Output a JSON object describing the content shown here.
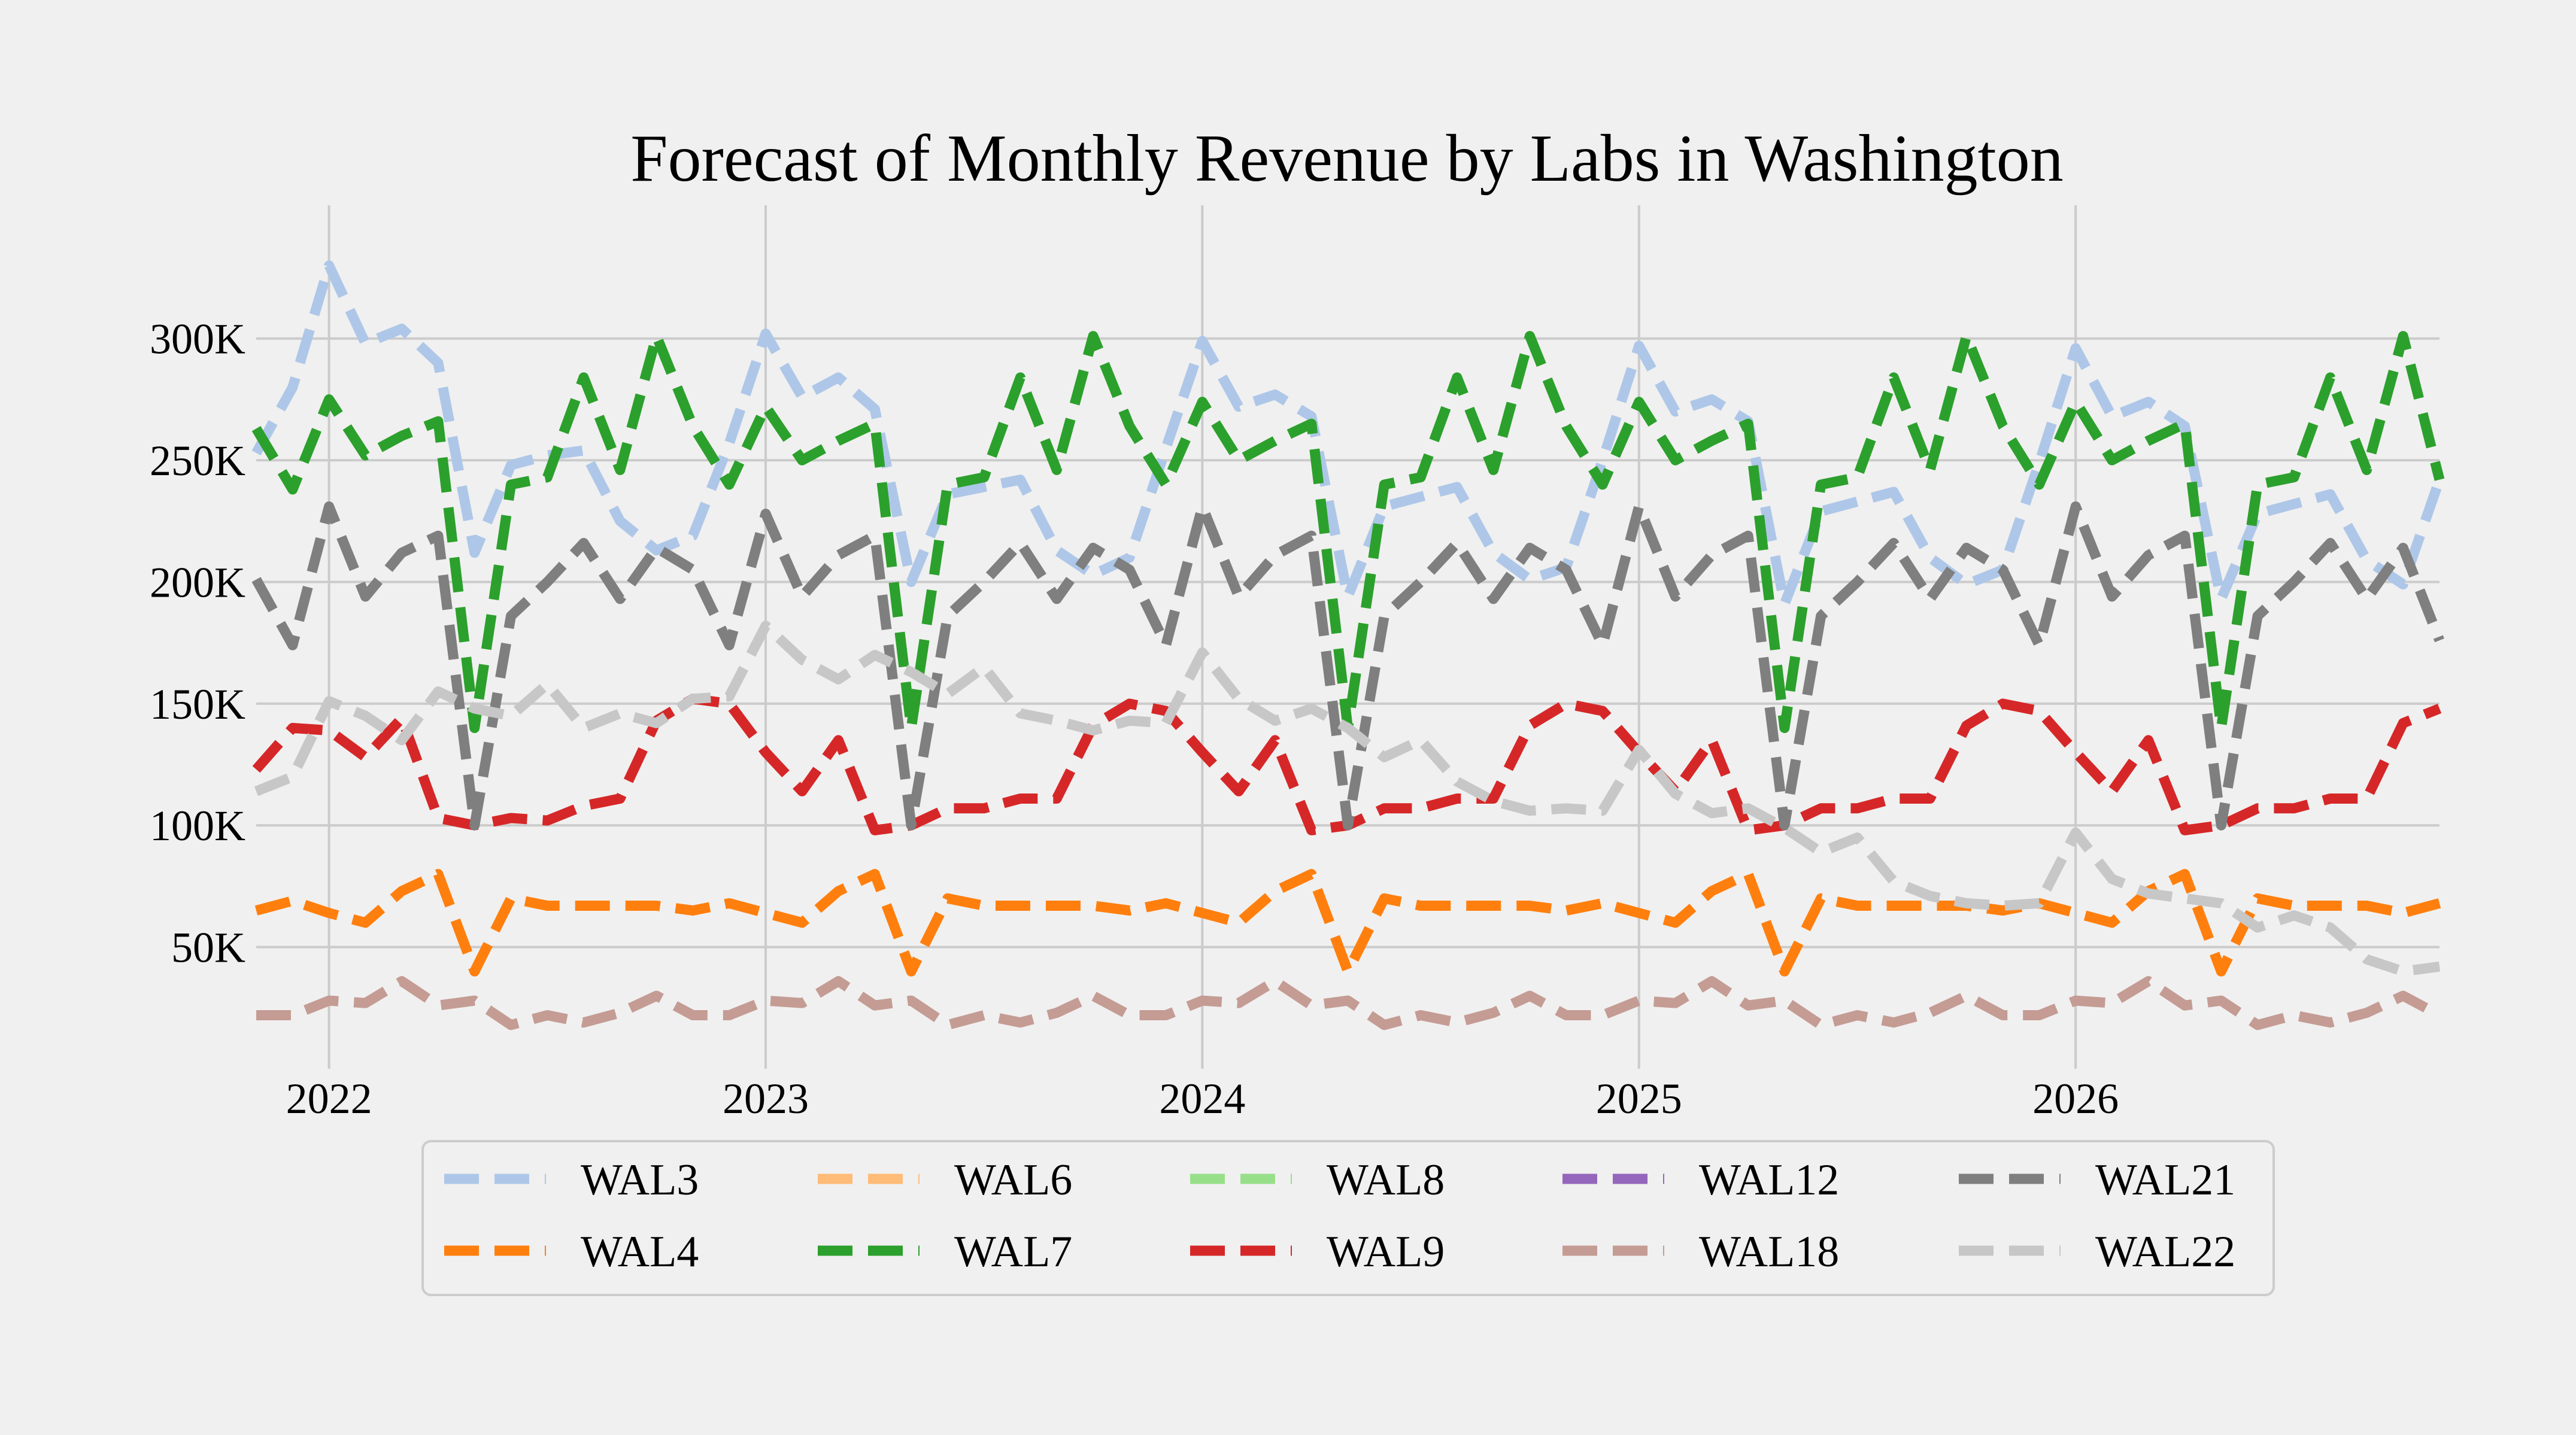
{
  "chart_data": {
    "type": "line",
    "title": "Forecast of Monthly Revenue by Labs in Washington",
    "xlabel": "",
    "ylabel": "",
    "x_start": "2021-11",
    "x_end": "2026-11",
    "x_ticks": [
      "2022",
      "2023",
      "2024",
      "2025",
      "2026"
    ],
    "ylim": [
      0,
      340000
    ],
    "y_ticks": [
      {
        "value": 50000,
        "label": "50K"
      },
      {
        "value": 100000,
        "label": "100K"
      },
      {
        "value": 150000,
        "label": "150K"
      },
      {
        "value": 200000,
        "label": "200K"
      },
      {
        "value": 250000,
        "label": "250K"
      },
      {
        "value": 300000,
        "label": "300K"
      }
    ],
    "grid": true,
    "legend_position": "bottom-center",
    "legend_columns": 5,
    "series": [
      {
        "name": "WAL3",
        "color": "#aec7e8",
        "values": [
          253000,
          280000,
          330000,
          298000,
          304000,
          290000,
          212000,
          248000,
          252000,
          254000,
          225000,
          213000,
          219000,
          257000,
          302000,
          276000,
          284000,
          271000,
          200000,
          236000,
          239000,
          242000,
          213000,
          203000,
          210000,
          255000,
          299000,
          272000,
          277000,
          268000,
          194000,
          231000,
          235000,
          239000,
          212000,
          201000,
          206000,
          250000,
          297000,
          270000,
          275000,
          266000,
          191000,
          229000,
          233000,
          237000,
          210000,
          199000,
          205000,
          249000,
          296000,
          268000,
          274000,
          264000,
          193000,
          228000,
          232000,
          236000,
          209000,
          199000,
          242000
        ]
      },
      {
        "name": "WAL4",
        "color": "#ff7f0e",
        "values": [
          65000,
          69000,
          64000,
          60000,
          73000,
          80000,
          40000,
          70000,
          67000,
          67000,
          67000,
          67000,
          65000,
          68000,
          64000,
          60000,
          73000,
          80000,
          40000,
          70000,
          67000,
          67000,
          67000,
          67000,
          65000,
          68000,
          64000,
          60000,
          73000,
          80000,
          40000,
          70000,
          67000,
          67000,
          67000,
          67000,
          65000,
          68000,
          64000,
          60000,
          73000,
          80000,
          40000,
          70000,
          67000,
          67000,
          67000,
          67000,
          65000,
          68000,
          64000,
          60000,
          73000,
          80000,
          40000,
          70000,
          67000,
          67000,
          67000,
          64000,
          68000
        ]
      },
      {
        "name": "WAL6",
        "color": "#ffbb78",
        "values": []
      },
      {
        "name": "WAL7",
        "color": "#2ca02c",
        "values": [
          263000,
          238000,
          275000,
          252000,
          260000,
          266000,
          140000,
          240000,
          243000,
          284000,
          246000,
          301000,
          264000,
          240000,
          272000,
          250000,
          258000,
          265000,
          140000,
          240000,
          243000,
          284000,
          246000,
          301000,
          264000,
          240000,
          274000,
          250000,
          258000,
          265000,
          140000,
          240000,
          243000,
          284000,
          246000,
          301000,
          264000,
          240000,
          274000,
          250000,
          258000,
          265000,
          140000,
          240000,
          243000,
          284000,
          246000,
          301000,
          264000,
          240000,
          274000,
          250000,
          258000,
          265000,
          140000,
          240000,
          243000,
          284000,
          246000,
          301000,
          242000
        ]
      },
      {
        "name": "WAL8",
        "color": "#98df8a",
        "values": []
      },
      {
        "name": "WAL9",
        "color": "#d62728",
        "values": [
          123000,
          140000,
          139000,
          128000,
          144000,
          103000,
          100000,
          103000,
          102000,
          108000,
          111000,
          143000,
          152000,
          150000,
          130000,
          114000,
          135000,
          98000,
          100000,
          107000,
          107000,
          111000,
          111000,
          141000,
          150000,
          147000,
          130000,
          114000,
          135000,
          98000,
          100000,
          107000,
          107000,
          111000,
          111000,
          141000,
          150000,
          147000,
          130000,
          114000,
          135000,
          98000,
          100000,
          107000,
          107000,
          111000,
          111000,
          141000,
          150000,
          147000,
          130000,
          114000,
          135000,
          98000,
          100000,
          107000,
          107000,
          111000,
          111000,
          142000,
          148000
        ]
      },
      {
        "name": "WAL12",
        "color": "#9467bd",
        "values": []
      },
      {
        "name": "WAL18",
        "color": "#c49c94",
        "values": [
          22000,
          22000,
          28000,
          27000,
          36000,
          26000,
          28000,
          18000,
          22000,
          19000,
          23000,
          30000,
          22000,
          22000,
          28000,
          27000,
          36000,
          26000,
          28000,
          18000,
          22000,
          19000,
          23000,
          30000,
          22000,
          22000,
          28000,
          27000,
          36000,
          26000,
          28000,
          18000,
          22000,
          19000,
          23000,
          30000,
          22000,
          22000,
          28000,
          27000,
          36000,
          26000,
          28000,
          18000,
          22000,
          19000,
          23000,
          30000,
          22000,
          22000,
          28000,
          27000,
          36000,
          26000,
          28000,
          18000,
          22000,
          19000,
          23000,
          30000,
          22000
        ]
      },
      {
        "name": "WAL21",
        "color": "#7f7f7f",
        "values": [
          201000,
          174000,
          231000,
          194000,
          212000,
          219000,
          100000,
          186000,
          200000,
          216000,
          193000,
          214000,
          205000,
          174000,
          228000,
          194000,
          211000,
          219000,
          100000,
          186000,
          200000,
          216000,
          193000,
          214000,
          205000,
          174000,
          231000,
          194000,
          211000,
          219000,
          100000,
          186000,
          200000,
          216000,
          193000,
          214000,
          205000,
          174000,
          231000,
          194000,
          211000,
          219000,
          100000,
          186000,
          200000,
          216000,
          193000,
          214000,
          205000,
          174000,
          231000,
          194000,
          211000,
          219000,
          100000,
          186000,
          200000,
          216000,
          193000,
          214000,
          176000
        ]
      },
      {
        "name": "WAL22",
        "color": "#c7c7c7",
        "values": [
          114000,
          120000,
          151000,
          145000,
          135000,
          155000,
          148000,
          145000,
          158000,
          140000,
          146000,
          142000,
          152000,
          153000,
          182000,
          168000,
          160000,
          170000,
          163000,
          154000,
          165000,
          146000,
          143000,
          139000,
          143000,
          142000,
          171000,
          152000,
          143000,
          148000,
          140000,
          128000,
          135000,
          118000,
          110000,
          106000,
          107000,
          106000,
          131000,
          113000,
          105000,
          107000,
          99000,
          89000,
          95000,
          77000,
          71000,
          68000,
          67000,
          68000,
          97000,
          78000,
          72000,
          70000,
          68000,
          58000,
          63000,
          58000,
          45000,
          40000,
          42000
        ]
      }
    ]
  }
}
